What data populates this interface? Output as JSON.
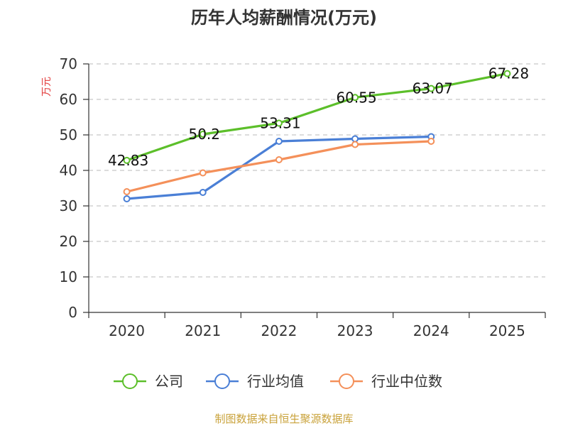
{
  "chart_data": {
    "type": "line",
    "title": "历年人均薪酬情况(万元)",
    "ylabel": "万元",
    "xlabel": "",
    "categories": [
      "2020",
      "2021",
      "2022",
      "2023",
      "2024",
      "2025"
    ],
    "yticks": [
      0,
      10,
      20,
      30,
      40,
      50,
      60,
      70
    ],
    "ylim": [
      0,
      70
    ],
    "grid": true,
    "legend_position": "bottom",
    "series": [
      {
        "name": "公司",
        "color": "#5cbf2a",
        "values": [
          42.83,
          50.2,
          53.31,
          60.55,
          63.07,
          67.28
        ],
        "labels": [
          "42.83",
          "50.2",
          "53.31",
          "60.55",
          "63.07",
          "67.28"
        ],
        "show_labels": true
      },
      {
        "name": "行业均值",
        "color": "#4a7fd6",
        "values": [
          32.0,
          33.8,
          48.2,
          48.9,
          49.5,
          null
        ],
        "show_labels": false
      },
      {
        "name": "行业中位数",
        "color": "#f4905a",
        "values": [
          34.0,
          39.3,
          43.0,
          47.3,
          48.2,
          null
        ],
        "show_labels": false
      }
    ],
    "source": "制图数据来自恒生聚源数据库"
  }
}
